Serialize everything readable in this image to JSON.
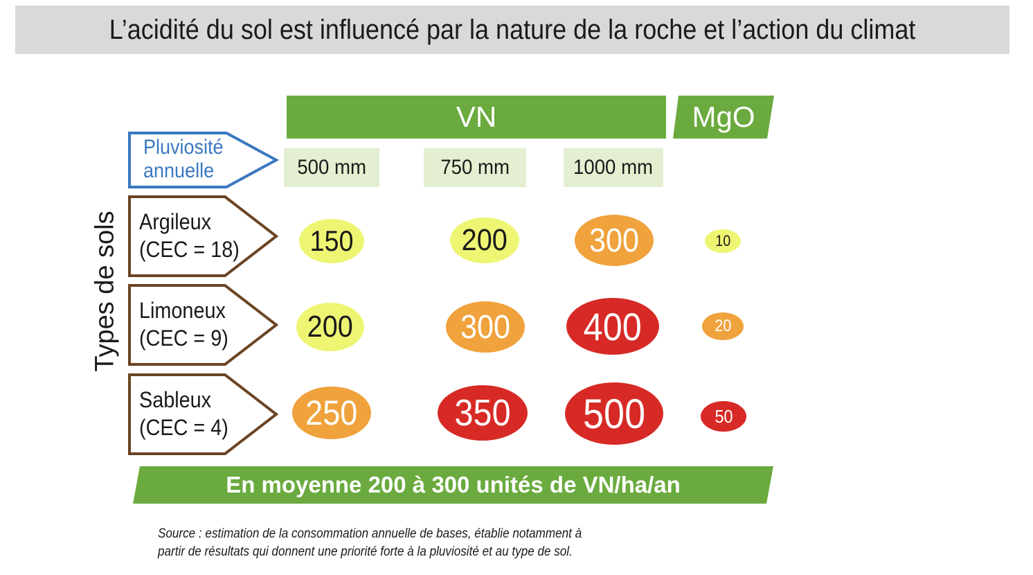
{
  "title": "L’acidité du sol est influencé par la nature de la roche et l’action du climat",
  "headers": {
    "vn": "VN",
    "mgo": "MgO"
  },
  "pluviosite": {
    "line1": "Pluviosité",
    "line2": "annuelle"
  },
  "columns": [
    "500 mm",
    "750 mm",
    "1000 mm"
  ],
  "axis_label": "Types de sols",
  "rows": [
    {
      "name": "Argileux",
      "cec": "(CEC = 18)",
      "vn": [
        "150",
        "200",
        "300"
      ],
      "mgo": "10"
    },
    {
      "name": "Limoneux",
      "cec": "(CEC = 9)",
      "vn": [
        "200",
        "300",
        "400"
      ],
      "mgo": "20"
    },
    {
      "name": "Sableux",
      "cec": "(CEC = 4)",
      "vn": [
        "250",
        "350",
        "500"
      ],
      "mgo": "50"
    }
  ],
  "level_colors": {
    "low": "#eef573",
    "medium": "#f0a23c",
    "high": "#d72a26"
  },
  "accent_green": "#6aaa3e",
  "bottom_banner": "En moyenne 200 à 300 unités de VN/ha/an",
  "source": {
    "line1": "Source : estimation de la consommation annuelle de bases, établie notamment à",
    "line2": "partir de résultats qui donnent une priorité forte à la pluviosité et au type de sol."
  }
}
